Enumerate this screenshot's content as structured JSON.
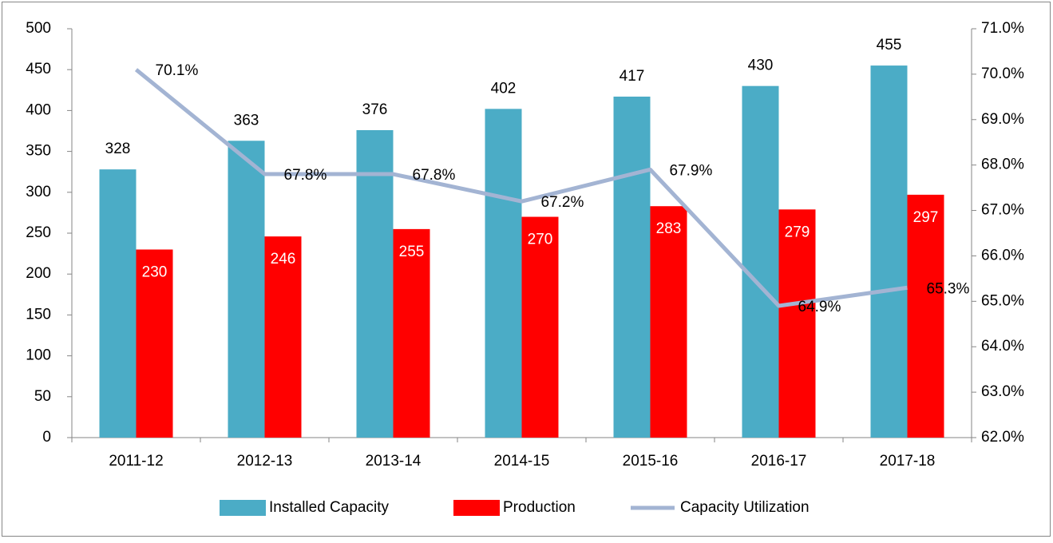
{
  "chart_data": {
    "type": "bar-line",
    "categories": [
      "2011-12",
      "2012-13",
      "2013-14",
      "2014-15",
      "2015-16",
      "2016-17",
      "2017-18"
    ],
    "series": [
      {
        "name": "Installed Capacity",
        "color": "#4bacc6",
        "values": [
          328,
          363,
          376,
          402,
          417,
          430,
          455
        ]
      },
      {
        "name": "Production",
        "color": "#ff0000",
        "values": [
          230,
          246,
          255,
          270,
          283,
          279,
          297
        ]
      },
      {
        "name": "Capacity Utilization",
        "color": "#a3b4d3",
        "axis": "y2",
        "values": [
          70.1,
          67.8,
          67.8,
          67.2,
          67.9,
          64.9,
          65.3
        ],
        "value_labels": [
          "70.1%",
          "67.8%",
          "67.8%",
          "67.2%",
          "67.9%",
          "64.9%",
          "65.3%"
        ]
      }
    ],
    "ylim": [
      0,
      500
    ],
    "yticks": [
      0,
      50,
      100,
      150,
      200,
      250,
      300,
      350,
      400,
      450,
      500
    ],
    "y2lim": [
      62,
      71
    ],
    "y2ticks": [
      {
        "value": 62,
        "label": "62.0%"
      },
      {
        "value": 63,
        "label": "63.0%"
      },
      {
        "value": 64,
        "label": "64.0%"
      },
      {
        "value": 65,
        "label": "65.0%"
      },
      {
        "value": 66,
        "label": "66.0%"
      },
      {
        "value": 67,
        "label": "67.0%"
      },
      {
        "value": 68,
        "label": "68.0%"
      },
      {
        "value": 69,
        "label": "69.0%"
      },
      {
        "value": 70,
        "label": "70.0%"
      },
      {
        "value": 71,
        "label": "71.0%"
      }
    ],
    "legend": "bottom"
  }
}
